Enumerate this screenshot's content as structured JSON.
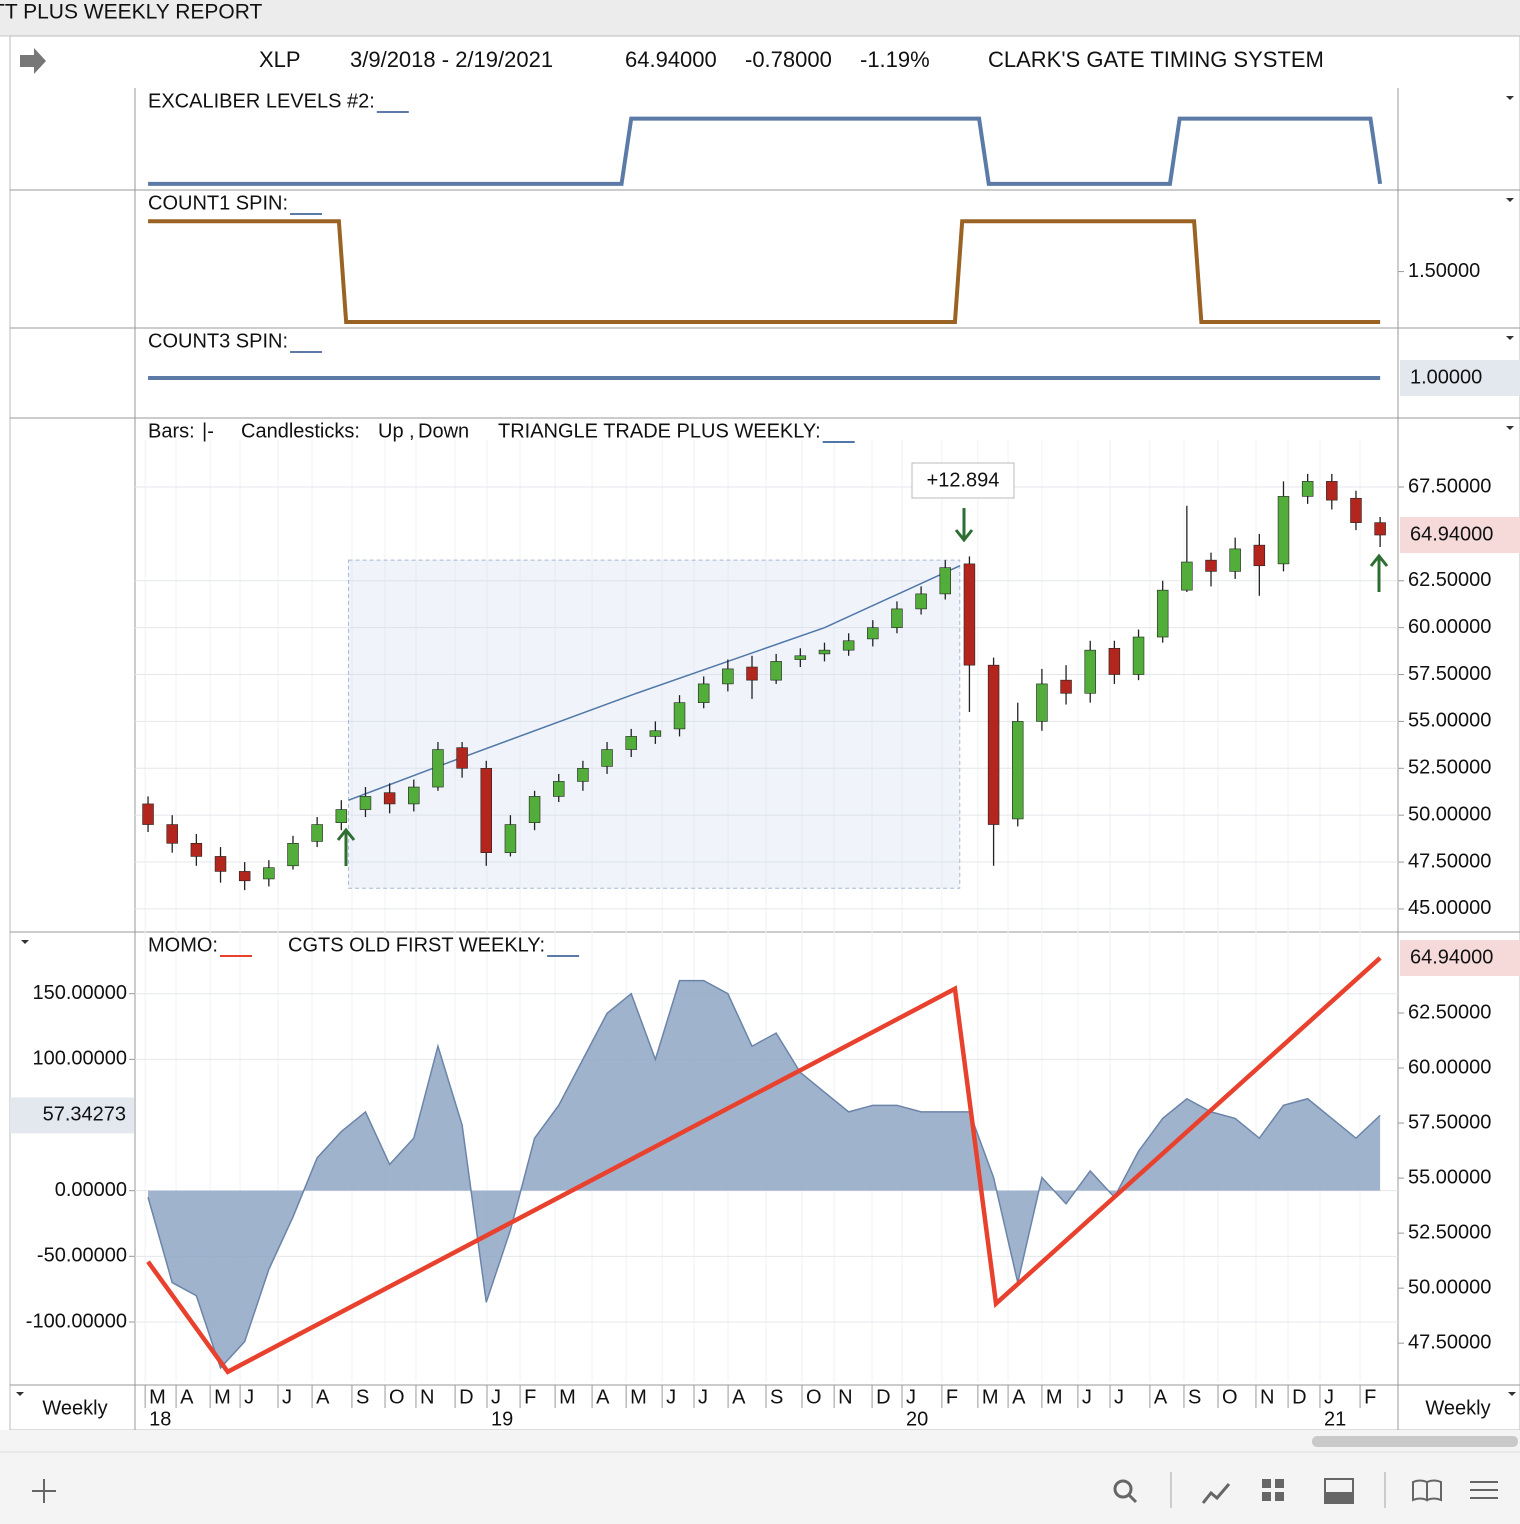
{
  "window_title": "TT PLUS WEEKLY REPORT",
  "header": {
    "symbol": "XLP",
    "date_range": "3/9/2018 - 2/19/2021",
    "price": "64.94000",
    "change": "-0.78000",
    "change_pct": "-1.19%",
    "system": "CLARK'S GATE TIMING SYSTEM"
  },
  "x_axis": {
    "xlim": [
      -0.54,
      51.74
    ],
    "xticks": [
      {
        "value": -0.12,
        "label": "M"
      },
      {
        "value": 1.16,
        "label": "A"
      },
      {
        "value": 2.57,
        "label": "M"
      },
      {
        "value": 3.81,
        "label": "J"
      },
      {
        "value": 5.38,
        "label": "J"
      },
      {
        "value": 6.79,
        "label": "A"
      },
      {
        "value": 8.44,
        "label": "S"
      },
      {
        "value": 9.81,
        "label": "O"
      },
      {
        "value": 11.09,
        "label": "N"
      },
      {
        "value": 12.71,
        "label": "D"
      },
      {
        "value": 14.03,
        "label": "J"
      },
      {
        "value": 15.4,
        "label": "F"
      },
      {
        "value": 16.85,
        "label": "M"
      },
      {
        "value": 18.38,
        "label": "A"
      },
      {
        "value": 19.79,
        "label": "M"
      },
      {
        "value": 21.28,
        "label": "J"
      },
      {
        "value": 22.6,
        "label": "J"
      },
      {
        "value": 24.01,
        "label": "A"
      },
      {
        "value": 25.58,
        "label": "S"
      },
      {
        "value": 27.07,
        "label": "O"
      },
      {
        "value": 28.4,
        "label": "N"
      },
      {
        "value": 29.97,
        "label": "D"
      },
      {
        "value": 31.21,
        "label": "J"
      },
      {
        "value": 32.86,
        "label": "F"
      },
      {
        "value": 34.35,
        "label": "M"
      },
      {
        "value": 35.6,
        "label": "A"
      },
      {
        "value": 37,
        "label": "M"
      },
      {
        "value": 38.49,
        "label": "J"
      },
      {
        "value": 39.82,
        "label": "J"
      },
      {
        "value": 41.47,
        "label": "A"
      },
      {
        "value": 42.88,
        "label": "S"
      },
      {
        "value": 44.29,
        "label": "O"
      },
      {
        "value": 45.86,
        "label": "N"
      },
      {
        "value": 47.19,
        "label": "D"
      },
      {
        "value": 48.51,
        "label": "J"
      },
      {
        "value": 50.17,
        "label": "F"
      }
    ],
    "years": [
      {
        "value": -0.12,
        "label": "18"
      },
      {
        "value": 14.03,
        "label": "19"
      },
      {
        "value": 31.21,
        "label": "20"
      },
      {
        "value": 48.51,
        "label": "21"
      }
    ],
    "left_label": "Weekly",
    "right_label": "Weekly"
  },
  "chart_data": [
    {
      "type": "step",
      "label": "EXCALIBER LEVELS #2:",
      "color": "#5b7ba6",
      "ylim": [
        -0.094,
        1.469
      ],
      "x": [
        0,
        19.6,
        20,
        34.4,
        34.8,
        42.3,
        42.7,
        50.6,
        51
      ],
      "values": [
        0,
        0,
        1,
        1,
        0,
        0,
        1,
        1,
        0
      ]
    },
    {
      "type": "step",
      "label": "COUNT1 SPIN:",
      "color": "#9a6324",
      "ylim": [
        0.94,
        2.31
      ],
      "yticks": [
        {
          "value": 1.5,
          "label": "1.50000"
        }
      ],
      "x": [
        0,
        7.9,
        8.2,
        33.4,
        33.7,
        43.3,
        43.6,
        51
      ],
      "values": [
        2,
        2,
        1,
        1,
        2,
        2,
        1,
        1
      ]
    },
    {
      "type": "step",
      "label": "COUNT3 SPIN:",
      "color": "#5b7ba6",
      "ylim": [
        0.6,
        1.5
      ],
      "value_label": {
        "value": 1,
        "label": "1.00000"
      },
      "x": [
        0,
        51
      ],
      "values": [
        1,
        1
      ]
    },
    {
      "type": "candlestick",
      "legend": {
        "bars": "Bars:",
        "bars_symbol": "|-",
        "candles": "Candlesticks:",
        "up": "Up",
        "separator": ",",
        "down": "Down",
        "overlay": "TRIANGLE TRADE PLUS WEEKLY:"
      },
      "up_color": "#52ad3a",
      "down_color": "#b3261e",
      "ylim": [
        43.77,
        71.18
      ],
      "yticks": [
        {
          "value": 45,
          "label": "45.00000"
        },
        {
          "value": 47.5,
          "label": "47.50000"
        },
        {
          "value": 50,
          "label": "50.00000"
        },
        {
          "value": 52.5,
          "label": "52.50000"
        },
        {
          "value": 55,
          "label": "55.00000"
        },
        {
          "value": 57.5,
          "label": "57.50000"
        },
        {
          "value": 60,
          "label": "60.00000"
        },
        {
          "value": 62.5,
          "label": "62.50000"
        },
        {
          "value": 67.5,
          "label": "67.50000"
        }
      ],
      "last_price": {
        "value": 64.94,
        "label": "64.94000"
      },
      "annotation": "+12.894",
      "x": [
        0,
        1,
        2,
        3,
        4,
        5,
        6,
        7,
        8,
        9,
        10,
        11,
        12,
        13,
        14,
        15,
        16,
        17,
        18,
        19,
        20,
        21,
        22,
        23,
        24,
        25,
        26,
        27,
        28,
        29,
        30,
        31,
        32,
        33,
        34,
        35,
        36,
        37,
        38,
        39,
        40,
        41,
        42,
        43,
        44,
        45,
        46,
        47,
        48,
        49,
        50,
        51
      ],
      "open": [
        50.6,
        49.5,
        48.5,
        47.8,
        47,
        46.6,
        47.3,
        48.6,
        49.6,
        50.3,
        51.2,
        50.6,
        51.5,
        53.6,
        52.5,
        48,
        49.6,
        51,
        51.8,
        52.6,
        53.5,
        54.2,
        54.6,
        56,
        57,
        57.9,
        57.2,
        58.3,
        58.6,
        58.8,
        59.4,
        60,
        61,
        61.8,
        63.4,
        58,
        49.8,
        55,
        57.2,
        56.5,
        58.9,
        57.5,
        59.5,
        62,
        63.6,
        63,
        64.4,
        63.4,
        67,
        67.8,
        66.9,
        65.6
      ],
      "high": [
        51,
        50,
        49,
        48.3,
        47.5,
        47.6,
        48.9,
        49.9,
        50.8,
        51.5,
        51.7,
        51.9,
        53.9,
        53.9,
        52.9,
        50,
        51.3,
        52.2,
        52.9,
        53.9,
        54.6,
        55,
        56.4,
        57.4,
        58.3,
        58.5,
        58.6,
        58.9,
        59.2,
        59.7,
        60.4,
        61.4,
        62.2,
        63.6,
        63.8,
        58.4,
        56,
        57.8,
        58,
        59.3,
        59.3,
        59.9,
        62.5,
        66.5,
        64,
        64.8,
        65,
        67.8,
        68.2,
        68.2,
        67.3,
        65.9
      ],
      "low": [
        49.1,
        48,
        47.3,
        46.4,
        46,
        46.2,
        47.1,
        48.3,
        49.2,
        49.9,
        50.1,
        50.2,
        51.3,
        52,
        47.3,
        47.8,
        49.2,
        50.7,
        51.3,
        52.2,
        53.1,
        53.8,
        54.2,
        55.7,
        56.6,
        56.2,
        57,
        57.9,
        58.2,
        58.5,
        59,
        59.7,
        60.7,
        61.5,
        55.5,
        47.3,
        49.4,
        54.5,
        55.9,
        56,
        57,
        57.2,
        59.2,
        61.9,
        62.2,
        62.6,
        61.7,
        63,
        66.6,
        66.3,
        65.2,
        64.3
      ],
      "close": [
        49.5,
        48.5,
        47.8,
        47,
        46.5,
        47.2,
        48.5,
        49.5,
        50.3,
        51,
        50.6,
        51.5,
        53.5,
        52.5,
        48,
        49.5,
        51,
        51.8,
        52.5,
        53.5,
        54.2,
        54.5,
        56,
        57,
        57.8,
        57.2,
        58.2,
        58.5,
        58.8,
        59.3,
        60,
        61,
        61.8,
        63.2,
        58,
        49.5,
        55,
        57,
        56.5,
        58.8,
        57.5,
        59.5,
        62,
        63.5,
        63,
        64.2,
        63.3,
        67,
        67.8,
        66.8,
        65.6,
        64.94
      ],
      "overlay": {
        "color": "#4f77a8",
        "x": [
          8.3,
          12,
          20,
          28,
          33.6
        ],
        "values": [
          50.8,
          52.6,
          56.4,
          60,
          63.3
        ]
      },
      "box": {
        "x": [
          8.3,
          33.6
        ],
        "y": [
          46.1,
          63.6
        ]
      }
    },
    {
      "type": "area",
      "legend": {
        "momo": "MOMO:",
        "cgts": "CGTS OLD FIRST WEEKLY:"
      },
      "ylim": [
        -148,
        197
      ],
      "yticks": [
        {
          "value": -100,
          "label": "-100.00000"
        },
        {
          "value": -50,
          "label": "-50.00000"
        },
        {
          "value": 0,
          "label": "0.00000"
        },
        {
          "value": 100,
          "label": "100.00000"
        },
        {
          "value": 150,
          "label": "150.00000"
        }
      ],
      "current_label": "57.34273",
      "y2lim": [
        45.6,
        66.18
      ],
      "y2ticks": [
        {
          "value": 47.5,
          "label": "47.50000"
        },
        {
          "value": 50,
          "label": "50.00000"
        },
        {
          "value": 52.5,
          "label": "52.50000"
        },
        {
          "value": 55,
          "label": "55.00000"
        },
        {
          "value": 57.5,
          "label": "57.50000"
        },
        {
          "value": 60,
          "label": "60.00000"
        },
        {
          "value": 62.5,
          "label": "62.50000"
        }
      ],
      "y2_last": {
        "value": 65,
        "label": "64.94000"
      },
      "series": [
        {
          "name": "CGTS OLD FIRST WEEKLY",
          "color": "#8fa6c4",
          "x": [
            0,
            1,
            2,
            3,
            4,
            5,
            6,
            7,
            8,
            9,
            10,
            11,
            12,
            13,
            14,
            15,
            16,
            17,
            18,
            19,
            20,
            21,
            22,
            23,
            24,
            25,
            26,
            27,
            28,
            29,
            30,
            31,
            32,
            33,
            34,
            35,
            36,
            37,
            38,
            39,
            40,
            41,
            42,
            43,
            44,
            45,
            46,
            47,
            48,
            49,
            50,
            51
          ],
          "values": [
            -5,
            -70,
            -80,
            -135,
            -115,
            -60,
            -20,
            25,
            45,
            60,
            20,
            40,
            110,
            50,
            -85,
            -30,
            40,
            65,
            100,
            135,
            150,
            100,
            160,
            160,
            150,
            110,
            120,
            90,
            75,
            60,
            65,
            65,
            60,
            60,
            60,
            10,
            -70,
            10,
            -10,
            15,
            -5,
            30,
            55,
            70,
            60,
            55,
            40,
            65,
            70,
            55,
            40,
            57.34273
          ]
        },
        {
          "name": "MOMO",
          "color": "#e8422e",
          "axis": "y2",
          "x": [
            0,
            3.3,
            33.4,
            35.1,
            51
          ],
          "values": [
            51.2,
            46.2,
            63.6,
            49.3,
            65
          ]
        }
      ]
    }
  ]
}
